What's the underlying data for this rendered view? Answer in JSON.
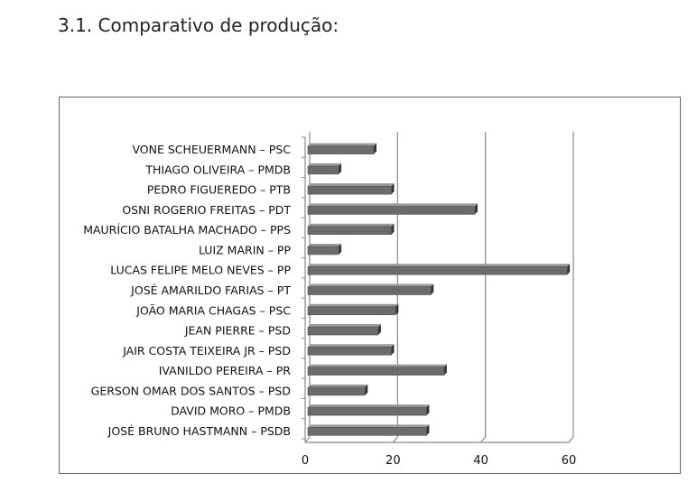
{
  "heading": "3.1. Comparativo de produção:",
  "chart_data": {
    "type": "bar",
    "orientation": "horizontal",
    "title": "",
    "xlabel": "",
    "ylabel": "",
    "xlim": [
      0,
      60
    ],
    "grid": true,
    "legend": "none",
    "bar_color": "#6b6b6b",
    "x_ticks": [
      "0",
      "20",
      "40",
      "60"
    ],
    "categories": [
      "VONE SCHEUERMANN – PSC",
      "THIAGO OLIVEIRA – PMDB",
      "PEDRO FIGUEREDO – PTB",
      "OSNI ROGERIO FREITAS – PDT",
      "MAURÍCIO BATALHA MACHADO – PPS",
      "LUIZ MARIN – PP",
      "LUCAS FELIPE MELO NEVES – PP",
      "JOSÉ AMARILDO FARIAS – PT",
      "JOÃO MARIA CHAGAS – PSC",
      "JEAN PIERRE – PSD",
      "JAIR COSTA TEIXEIRA JR – PSD",
      "IVANILDO PEREIRA – PR",
      "GERSON OMAR DOS SANTOS – PSD",
      "DAVID MORO – PMDB",
      "JOSÉ BRUNO HASTMANN – PSDB"
    ],
    "values": [
      15,
      7,
      19,
      38,
      19,
      7,
      59,
      28,
      20,
      16,
      19,
      31,
      13,
      27,
      27
    ]
  }
}
